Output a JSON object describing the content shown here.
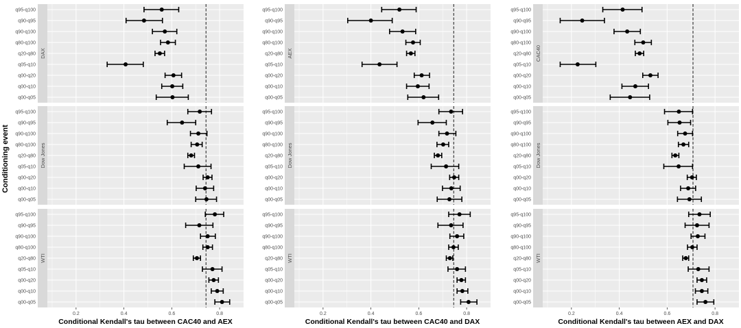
{
  "y_axis_title": "Conditioning event",
  "categories": [
    "q95-q100",
    "q90-q95",
    "q90-q100",
    "q80-q100",
    "q20-q80",
    "q05-q10",
    "q00-q20",
    "q00-q10",
    "q00-q05"
  ],
  "x_ticks": [
    0.2,
    0.4,
    0.6,
    0.8
  ],
  "x_range": [
    0.08,
    0.9
  ],
  "colors": {
    "panel_bg": "#ebebeb",
    "grid": "#ffffff",
    "strip_bg": "#d9d9d9",
    "point": "#000000",
    "ref_line": "#1a1a1a"
  },
  "chart_data": [
    {
      "type": "scatter",
      "title": "",
      "xlabel": "Conditional Kendall's tau between CAC40 and AEX",
      "reference_line": 0.743,
      "facets": [
        {
          "strip": "DAX",
          "estimate": [
            0.558,
            0.484,
            0.571,
            0.584,
            0.55,
            0.407,
            0.607,
            0.602,
            0.603
          ],
          "lower": [
            0.484,
            0.409,
            0.519,
            0.553,
            0.53,
            0.33,
            0.572,
            0.558,
            0.535
          ],
          "upper": [
            0.629,
            0.561,
            0.621,
            0.615,
            0.57,
            0.481,
            0.641,
            0.646,
            0.669
          ]
        },
        {
          "strip": "Dow Jones",
          "estimate": [
            0.717,
            0.643,
            0.711,
            0.706,
            0.681,
            0.711,
            0.75,
            0.739,
            0.745
          ],
          "lower": [
            0.667,
            0.581,
            0.678,
            0.681,
            0.667,
            0.652,
            0.731,
            0.702,
            0.7
          ],
          "upper": [
            0.766,
            0.7,
            0.747,
            0.727,
            0.695,
            0.764,
            0.768,
            0.775,
            0.787
          ]
        },
        {
          "strip": "WTI",
          "estimate": [
            0.78,
            0.715,
            0.75,
            0.75,
            0.705,
            0.77,
            0.775,
            0.79,
            0.81
          ],
          "lower": [
            0.74,
            0.658,
            0.72,
            0.73,
            0.69,
            0.728,
            0.755,
            0.765,
            0.78
          ],
          "upper": [
            0.817,
            0.772,
            0.782,
            0.77,
            0.72,
            0.81,
            0.795,
            0.815,
            0.842
          ]
        }
      ]
    },
    {
      "type": "scatter",
      "title": "",
      "xlabel": "Conditional Kendall's tau between CAC40 and DAX",
      "reference_line": 0.746,
      "facets": [
        {
          "strip": "AEX",
          "estimate": [
            0.519,
            0.4,
            0.532,
            0.576,
            0.567,
            0.436,
            0.612,
            0.596,
            0.62
          ],
          "lower": [
            0.445,
            0.303,
            0.478,
            0.546,
            0.549,
            0.363,
            0.581,
            0.549,
            0.554
          ],
          "upper": [
            0.589,
            0.489,
            0.587,
            0.606,
            0.584,
            0.509,
            0.645,
            0.643,
            0.683
          ]
        },
        {
          "strip": "Dow Jones",
          "estimate": [
            0.735,
            0.657,
            0.718,
            0.702,
            0.68,
            0.714,
            0.748,
            0.736,
            0.728
          ],
          "lower": [
            0.684,
            0.597,
            0.684,
            0.676,
            0.665,
            0.652,
            0.729,
            0.699,
            0.677
          ],
          "upper": [
            0.783,
            0.715,
            0.755,
            0.725,
            0.696,
            0.767,
            0.767,
            0.773,
            0.78
          ]
        },
        {
          "strip": "WTI",
          "estimate": [
            0.77,
            0.735,
            0.76,
            0.745,
            0.73,
            0.76,
            0.778,
            0.782,
            0.808
          ],
          "lower": [
            0.725,
            0.68,
            0.73,
            0.725,
            0.715,
            0.722,
            0.76,
            0.76,
            0.775
          ],
          "upper": [
            0.815,
            0.785,
            0.788,
            0.765,
            0.742,
            0.795,
            0.795,
            0.805,
            0.843
          ]
        }
      ]
    },
    {
      "type": "scatter",
      "title": "",
      "xlabel": "Conditional Kendall's tau between AEX and DAX",
      "reference_line": 0.708,
      "facets": [
        {
          "strip": "CAC40",
          "estimate": [
            0.414,
            0.245,
            0.433,
            0.5,
            0.485,
            0.226,
            0.53,
            0.467,
            0.445
          ],
          "lower": [
            0.331,
            0.153,
            0.378,
            0.465,
            0.467,
            0.153,
            0.498,
            0.411,
            0.362
          ],
          "upper": [
            0.495,
            0.338,
            0.488,
            0.534,
            0.502,
            0.302,
            0.562,
            0.522,
            0.527
          ]
        },
        {
          "strip": "Dow Jones",
          "estimate": [
            0.649,
            0.652,
            0.675,
            0.668,
            0.634,
            0.648,
            0.704,
            0.688,
            0.693
          ],
          "lower": [
            0.589,
            0.603,
            0.644,
            0.647,
            0.62,
            0.586,
            0.684,
            0.656,
            0.643
          ],
          "upper": [
            0.706,
            0.698,
            0.706,
            0.69,
            0.649,
            0.706,
            0.722,
            0.719,
            0.743
          ]
        },
        {
          "strip": "WTI",
          "estimate": [
            0.735,
            0.725,
            0.728,
            0.705,
            0.678,
            0.73,
            0.745,
            0.745,
            0.76
          ],
          "lower": [
            0.69,
            0.675,
            0.7,
            0.685,
            0.665,
            0.688,
            0.725,
            0.718,
            0.725
          ],
          "upper": [
            0.78,
            0.775,
            0.758,
            0.725,
            0.69,
            0.775,
            0.765,
            0.77,
            0.795
          ]
        }
      ]
    }
  ]
}
